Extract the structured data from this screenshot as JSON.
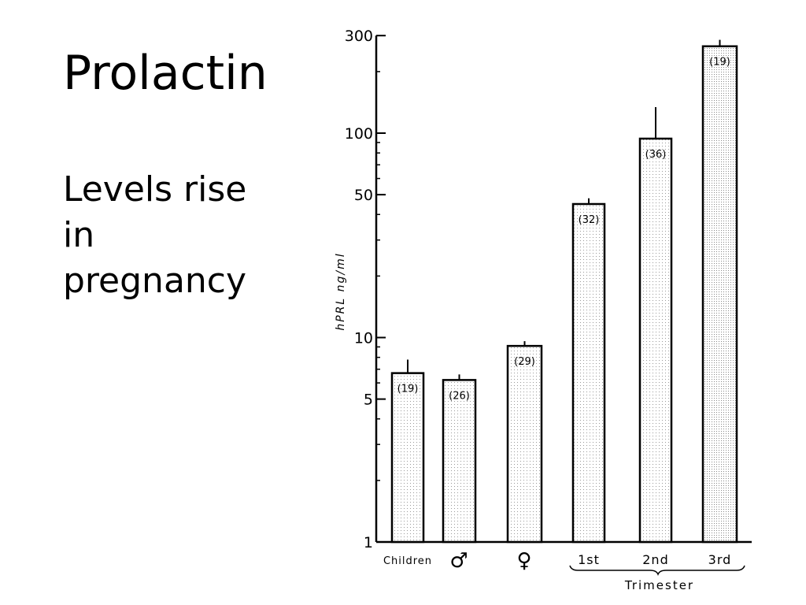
{
  "slide": {
    "title": "Prolactin",
    "subtitle_lines": [
      "Levels rise",
      "in",
      "pregnancy"
    ]
  },
  "chart_data": {
    "type": "bar",
    "title": "",
    "ylabel": "hPRL ng/ml",
    "xlabel": "Trimester",
    "yscale": "log",
    "ylim": [
      1,
      300
    ],
    "yticks": [
      1,
      5,
      10,
      50,
      100,
      300
    ],
    "ytick_labels": [
      "1",
      "5",
      "10",
      "50",
      "100",
      "300"
    ],
    "categories": [
      "Children",
      "♂",
      "♀",
      "1st",
      "2nd",
      "3rd"
    ],
    "values": [
      6.7,
      6.2,
      9.1,
      45,
      94,
      266
    ],
    "error_upper": [
      7.8,
      6.6,
      9.6,
      48,
      134,
      286
    ],
    "n_labels": [
      "(19)",
      "(26)",
      "(29)",
      "(32)",
      "(36)",
      "(19)"
    ],
    "group_label": "Trimester",
    "group_members": [
      "1st",
      "2nd",
      "3rd"
    ],
    "grid": false
  }
}
